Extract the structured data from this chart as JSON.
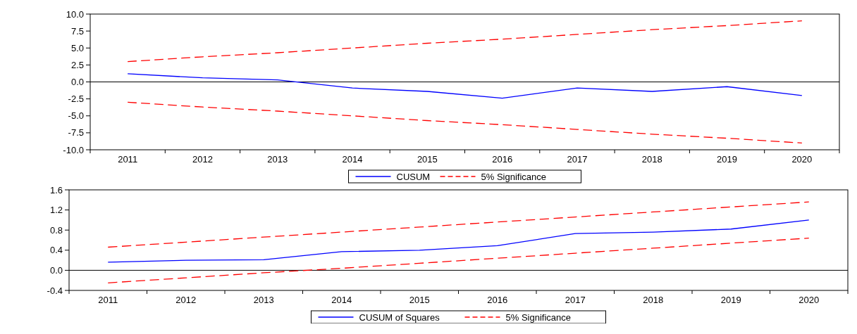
{
  "chart_data": [
    {
      "type": "line",
      "categories": [
        "2011",
        "2012",
        "2013",
        "2014",
        "2015",
        "2016",
        "2017",
        "2018",
        "2019",
        "2020"
      ],
      "series": [
        {
          "name": "CUSUM",
          "color": "#0000ff",
          "values": [
            1.2,
            0.6,
            0.3,
            -0.9,
            -1.4,
            -2.4,
            -0.9,
            -1.4,
            -0.7,
            -2.0
          ],
          "line_style": "solid"
        },
        {
          "name": "5% Significance",
          "color": "#ff0000",
          "values": [
            3.0,
            3.7,
            4.3,
            5.0,
            5.7,
            6.3,
            7.0,
            7.7,
            8.3,
            9.0
          ],
          "line_style": "dashed"
        },
        {
          "color": "#ff0000",
          "values": [
            -3.0,
            -3.7,
            -4.3,
            -5.0,
            -5.7,
            -6.3,
            -7.0,
            -7.7,
            -8.3,
            -9.0
          ],
          "line_style": "dashed"
        }
      ],
      "ylim": [
        -10,
        10
      ],
      "yticks": [
        {
          "value": -10,
          "label": "-10.0"
        },
        {
          "value": -7.5,
          "label": "-7.5"
        },
        {
          "value": -5,
          "label": "-5.0"
        },
        {
          "value": -2.5,
          "label": "-2.5"
        },
        {
          "value": 0,
          "label": "0.0"
        },
        {
          "value": 2.5,
          "label": "2.5"
        },
        {
          "value": 5,
          "label": "5.0"
        },
        {
          "value": 7.5,
          "label": "7.5"
        },
        {
          "value": 10,
          "label": "10.0"
        }
      ],
      "ref_lines": [
        {
          "axis": "y",
          "value": 0,
          "color": "#000000"
        }
      ],
      "grid": false,
      "legend": "bottom",
      "marker": "none"
    },
    {
      "type": "line",
      "categories": [
        "2011",
        "2012",
        "2013",
        "2014",
        "2015",
        "2016",
        "2017",
        "2018",
        "2019",
        "2020"
      ],
      "series": [
        {
          "name": "CUSUM of Squares",
          "color": "#0000ff",
          "values": [
            0.16,
            0.2,
            0.21,
            0.37,
            0.4,
            0.49,
            0.73,
            0.76,
            0.82,
            1.0
          ],
          "line_style": "solid"
        },
        {
          "name": "5% Significance",
          "color": "#ff0000",
          "values": [
            0.46,
            0.56,
            0.66,
            0.76,
            0.86,
            0.96,
            1.06,
            1.16,
            1.26,
            1.36
          ],
          "line_style": "dashed"
        },
        {
          "color": "#ff0000",
          "values": [
            -0.25,
            -0.15,
            -0.05,
            0.04,
            0.14,
            0.24,
            0.34,
            0.44,
            0.54,
            0.64
          ],
          "line_style": "dashed"
        }
      ],
      "ylim": [
        -0.4,
        1.6
      ],
      "yticks": [
        {
          "value": -0.4,
          "label": "-0.4"
        },
        {
          "value": 0,
          "label": "0.0"
        },
        {
          "value": 0.4,
          "label": "0.4"
        },
        {
          "value": 0.8,
          "label": "0.8"
        },
        {
          "value": 1.2,
          "label": "1.2"
        },
        {
          "value": 1.6,
          "label": "1.6"
        }
      ],
      "ref_lines": [
        {
          "axis": "y",
          "value": 0,
          "color": "#000000"
        }
      ],
      "grid": false,
      "legend": "bottom",
      "marker": "none"
    }
  ]
}
